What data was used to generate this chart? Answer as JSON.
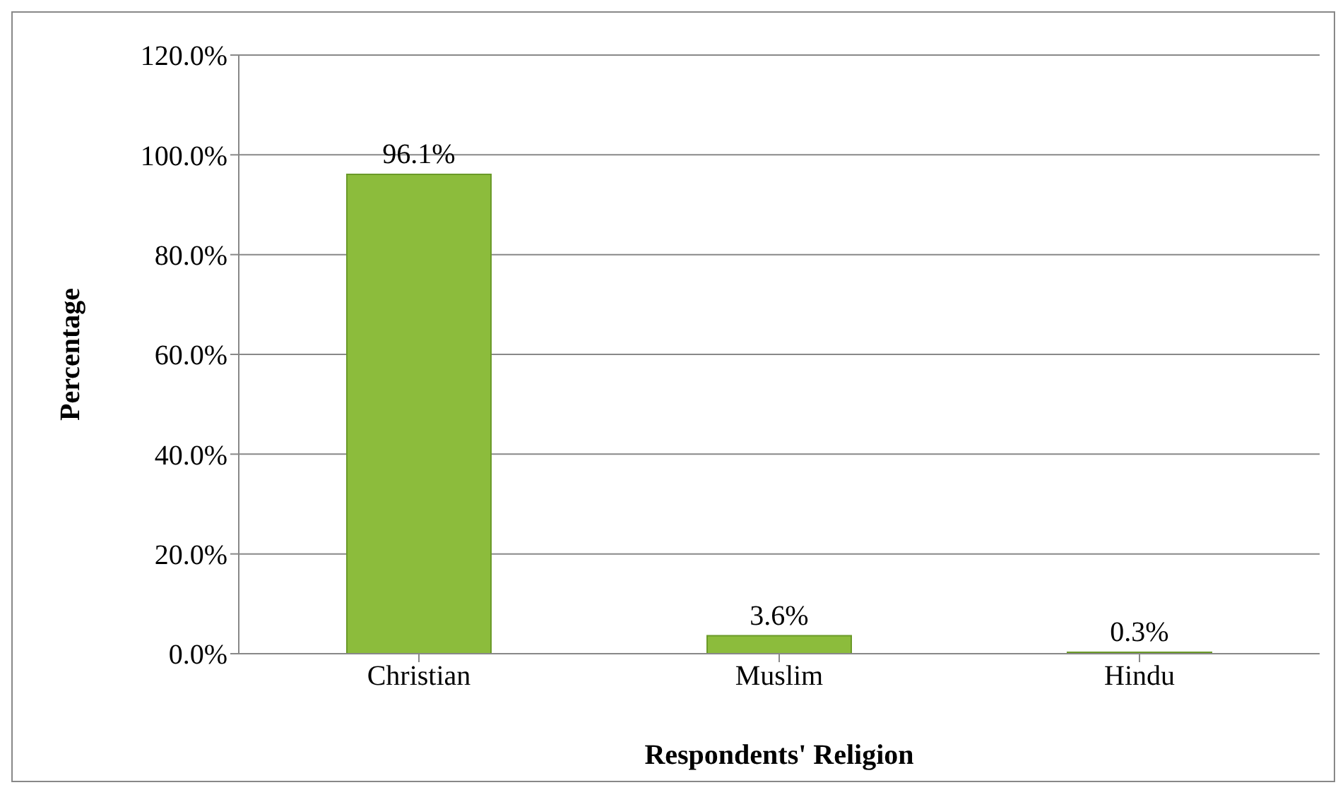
{
  "chart_data": {
    "type": "bar",
    "xlabel": "Respondents' Religion",
    "ylabel": "Percentage",
    "categories": [
      "Christian",
      "Muslim",
      "Hindu"
    ],
    "values": [
      96.1,
      3.6,
      0.3
    ],
    "color": "#8cbc3c",
    "value_labels": [
      "96.1%",
      "3.6%",
      "0.3%"
    ],
    "ylim": [
      0,
      120
    ],
    "yticks": [
      {
        "value": 0,
        "label": "0.0%"
      },
      {
        "value": 20,
        "label": "20.0%"
      },
      {
        "value": 40,
        "label": "40.0%"
      },
      {
        "value": 60,
        "label": "60.0%"
      },
      {
        "value": 80,
        "label": "80.0%"
      },
      {
        "value": 100,
        "label": "100.0%"
      },
      {
        "value": 120,
        "label": "120.0%"
      }
    ],
    "grid": "y",
    "legend": false
  }
}
